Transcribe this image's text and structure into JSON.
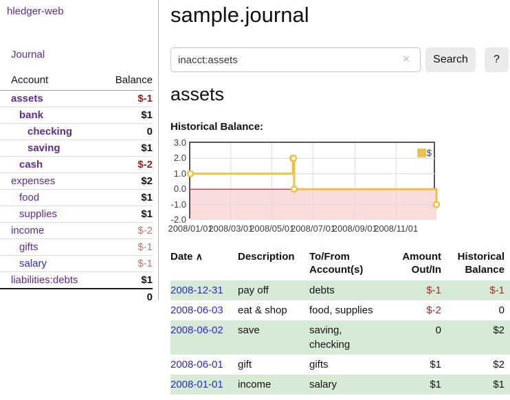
{
  "app": {
    "brand": "hledger-web",
    "nav_journal": "Journal"
  },
  "sidebar": {
    "header": {
      "account": "Account",
      "balance": "Balance"
    },
    "accounts": [
      {
        "name": "assets",
        "depth": 1,
        "bold": true,
        "blue": false,
        "balance": "$-1",
        "style": "neg"
      },
      {
        "name": "bank",
        "depth": 2,
        "bold": true,
        "blue": false,
        "balance": "$1",
        "style": "pos"
      },
      {
        "name": "checking",
        "depth": 3,
        "bold": true,
        "blue": false,
        "balance": "0",
        "style": "pos"
      },
      {
        "name": "saving",
        "depth": 3,
        "bold": true,
        "blue": false,
        "balance": "$1",
        "style": "pos"
      },
      {
        "name": "cash",
        "depth": 2,
        "bold": true,
        "blue": false,
        "balance": "$-2",
        "style": "neg"
      },
      {
        "name": "expenses",
        "depth": 1,
        "bold": false,
        "blue": false,
        "balance": "$2",
        "style": "pos"
      },
      {
        "name": "food",
        "depth": 2,
        "bold": false,
        "blue": false,
        "balance": "$1",
        "style": "pos"
      },
      {
        "name": "supplies",
        "depth": 2,
        "bold": false,
        "blue": false,
        "balance": "$1",
        "style": "pos"
      },
      {
        "name": "income",
        "depth": 1,
        "bold": false,
        "blue": false,
        "balance": "$-2",
        "style": "muted"
      },
      {
        "name": "gifts",
        "depth": 2,
        "bold": false,
        "blue": false,
        "balance": "$-1",
        "style": "muted"
      },
      {
        "name": "salary",
        "depth": 2,
        "bold": false,
        "blue": true,
        "balance": "$-1",
        "style": "muted"
      },
      {
        "name": "liabilities:debts",
        "depth": 1,
        "bold": false,
        "blue": false,
        "balance": "$1",
        "style": "pos"
      }
    ],
    "total": "0"
  },
  "header": {
    "title": "sample.journal"
  },
  "search": {
    "value": "inacct:assets",
    "clear_icon": "×",
    "button": "Search",
    "help_button": "?"
  },
  "account_page": {
    "heading": "assets",
    "chart_label": "Historical Balance:"
  },
  "chart_data": {
    "type": "line",
    "step": true,
    "series": [
      {
        "name": "$",
        "color": "#edc240",
        "points": [
          [
            "2008-01-01",
            1
          ],
          [
            "2008-06-01",
            2
          ],
          [
            "2008-06-02",
            2
          ],
          [
            "2008-06-03",
            0
          ],
          [
            "2008-12-31",
            -1
          ]
        ]
      }
    ],
    "xlim": [
      "2008/01/01",
      "2008/12/31"
    ],
    "ylim": [
      -2,
      3
    ],
    "yticks": [
      3.0,
      2.0,
      1.0,
      0.0,
      -1.0,
      -2.0
    ],
    "xticks": [
      "2008/01/01",
      "2008/03/01",
      "2008/05/01",
      "2008/07/01",
      "2008/09/01",
      "2008/11/01"
    ],
    "legend": "$",
    "legend_position": "top-right",
    "grid": true,
    "negative_fill": "#fbdcdc",
    "zero_line_color": "#a40000"
  },
  "register": {
    "headers": [
      {
        "lines": [
          "Date"
        ],
        "icon": "∧",
        "align": "left"
      },
      {
        "lines": [
          "Description"
        ],
        "align": "left"
      },
      {
        "lines": [
          "To/From",
          "Account(s)"
        ],
        "align": "left"
      },
      {
        "lines": [
          "Amount",
          "Out/In"
        ],
        "align": "right"
      },
      {
        "lines": [
          "Historical",
          "Balance"
        ],
        "align": "right"
      }
    ],
    "rows": [
      {
        "date": "2008-12-31",
        "description": "pay off",
        "accounts": [
          "debts"
        ],
        "amount": "$-1",
        "amount_neg": true,
        "balance": "$-1",
        "balance_neg": true
      },
      {
        "date": "2008-06-03",
        "description": "eat & shop",
        "accounts": [
          "food, supplies"
        ],
        "amount": "$-2",
        "amount_neg": true,
        "balance": "0",
        "balance_neg": false
      },
      {
        "date": "2008-06-02",
        "description": "save",
        "accounts": [
          "saving,",
          "checking"
        ],
        "amount": "0",
        "amount_neg": false,
        "balance": "$2",
        "balance_neg": false
      },
      {
        "date": "2008-06-01",
        "description": "gift",
        "accounts": [
          "gifts"
        ],
        "amount": "$1",
        "amount_neg": false,
        "balance": "$2",
        "balance_neg": false
      },
      {
        "date": "2008-01-01",
        "description": "income",
        "accounts": [
          "salary"
        ],
        "amount": "$1",
        "amount_neg": false,
        "balance": "$1",
        "balance_neg": false
      }
    ]
  }
}
